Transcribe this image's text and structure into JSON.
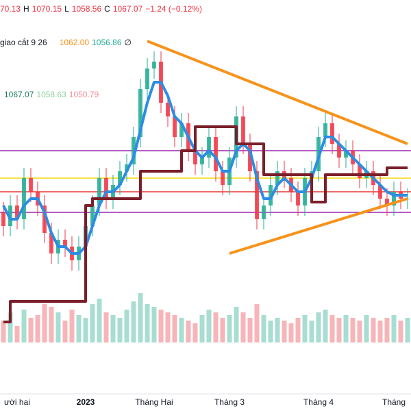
{
  "chart_data": {
    "type": "candlestick",
    "header": {
      "open": "70.13",
      "h_label": "H",
      "high": "1070.15",
      "l_label": "L",
      "low": "1058.56",
      "c_label": "C",
      "close": "1067.07",
      "change": "−1.24 (−0.12%)"
    },
    "indicator": {
      "name": "giao cắt 9 26",
      "v1": "1062.00",
      "v2": "1056.86",
      "symbol": "∅"
    },
    "indicator2": {
      "v1": "1067.07",
      "v2": "1058.63",
      "v3": "1050.79"
    },
    "categories": [
      null,
      null,
      "ười hai",
      null,
      null,
      null,
      null,
      null,
      null,
      null,
      null,
      null,
      "2023",
      null,
      null,
      null,
      null,
      null,
      null,
      null,
      null,
      null,
      "Tháng Hai",
      null,
      null,
      null,
      null,
      null,
      null,
      null,
      null,
      null,
      null,
      "Tháng 3",
      null,
      null,
      null,
      null,
      null,
      null,
      null,
      null,
      null,
      null,
      null,
      null,
      "Tháng 4",
      null,
      null,
      null,
      null,
      null,
      null,
      null,
      null,
      null,
      null,
      "Tháng",
      null,
      null
    ],
    "open": [
      1028,
      1024,
      1030,
      1026,
      1038,
      1034,
      1030,
      1022,
      1016,
      1020,
      1018,
      1014,
      1018,
      1024,
      1030,
      1038,
      1032,
      1036,
      1040,
      1042,
      1050,
      1064,
      1070,
      1072,
      1060,
      1056,
      1050,
      1054,
      1046,
      1042,
      1044,
      1050,
      1040,
      1036,
      1044,
      1056,
      1048,
      1040,
      1026,
      1030,
      1036,
      1040,
      1038,
      1034,
      1030,
      1038,
      1040,
      1050,
      1054,
      1048,
      1044,
      1046,
      1042,
      1038,
      1040,
      1036,
      1032,
      1030,
      1034,
      1032
    ],
    "high": [
      1031,
      1033,
      1033,
      1041,
      1041,
      1037,
      1033,
      1025,
      1023,
      1023,
      1021,
      1021,
      1027,
      1033,
      1041,
      1041,
      1039,
      1043,
      1045,
      1053,
      1067,
      1073,
      1075,
      1075,
      1063,
      1059,
      1057,
      1057,
      1049,
      1047,
      1053,
      1053,
      1043,
      1047,
      1059,
      1059,
      1051,
      1043,
      1033,
      1039,
      1043,
      1043,
      1041,
      1037,
      1041,
      1043,
      1053,
      1057,
      1057,
      1051,
      1049,
      1049,
      1045,
      1043,
      1043,
      1039,
      1035,
      1037,
      1037,
      1035
    ],
    "low": [
      1021,
      1021,
      1023,
      1023,
      1031,
      1027,
      1019,
      1013,
      1013,
      1015,
      1011,
      1011,
      1015,
      1021,
      1027,
      1029,
      1029,
      1033,
      1037,
      1039,
      1047,
      1061,
      1067,
      1057,
      1053,
      1047,
      1047,
      1043,
      1039,
      1039,
      1041,
      1037,
      1033,
      1033,
      1041,
      1045,
      1037,
      1023,
      1023,
      1027,
      1033,
      1035,
      1031,
      1027,
      1027,
      1035,
      1037,
      1047,
      1045,
      1041,
      1041,
      1039,
      1035,
      1035,
      1033,
      1029,
      1027,
      1027,
      1029,
      1029
    ],
    "close": [
      1024,
      1030,
      1026,
      1038,
      1034,
      1030,
      1022,
      1016,
      1020,
      1018,
      1014,
      1018,
      1024,
      1030,
      1038,
      1032,
      1036,
      1040,
      1042,
      1050,
      1064,
      1070,
      1072,
      1060,
      1056,
      1050,
      1054,
      1046,
      1042,
      1044,
      1050,
      1040,
      1036,
      1044,
      1056,
      1048,
      1040,
      1026,
      1030,
      1036,
      1040,
      1038,
      1034,
      1030,
      1038,
      1040,
      1050,
      1054,
      1048,
      1044,
      1046,
      1042,
      1038,
      1040,
      1036,
      1032,
      1030,
      1034,
      1032,
      1032
    ],
    "volume": [
      40,
      55,
      30,
      60,
      45,
      50,
      70,
      65,
      55,
      40,
      60,
      50,
      45,
      70,
      80,
      55,
      50,
      45,
      60,
      75,
      90,
      70,
      65,
      60,
      55,
      50,
      45,
      40,
      35,
      50,
      60,
      55,
      45,
      50,
      65,
      55,
      45,
      70,
      50,
      40,
      45,
      40,
      35,
      45,
      50,
      40,
      55,
      60,
      50,
      45,
      50,
      45,
      40,
      50,
      45,
      40,
      45,
      50,
      40,
      45
    ],
    "up_color": "#22ab94",
    "down_color": "#f23645",
    "volume_up_color": "#a8ddd2",
    "volume_down_color": "#f7b5b9",
    "ylim": [
      990,
      1090
    ],
    "volume_ylim": [
      0,
      100
    ],
    "lines": [
      {
        "color": "#2b8de4",
        "step": false,
        "values": [
          1030,
          1026,
          1026,
          1030,
          1032,
          1032,
          1028,
          1022,
          1018,
          1018,
          1016,
          1016,
          1018,
          1024,
          1030,
          1034,
          1034,
          1036,
          1040,
          1044,
          1052,
          1060,
          1066,
          1066,
          1062,
          1056,
          1054,
          1050,
          1046,
          1044,
          1046,
          1044,
          1040,
          1040,
          1046,
          1048,
          1046,
          1038,
          1032,
          1032,
          1036,
          1038,
          1036,
          1034,
          1034,
          1038,
          1044,
          1050,
          1050,
          1048,
          1046,
          1044,
          1042,
          1040,
          1038,
          1036,
          1034,
          1033,
          1033,
          1033
        ]
      },
      {
        "color": "#7b1f2a",
        "step": true,
        "values": [
          996,
          1002,
          1002,
          1002,
          1002,
          1002,
          1002,
          1002,
          1002,
          1002,
          1002,
          1002,
          1030,
          1032,
          1032,
          1032,
          1032,
          1032,
          1032,
          1032,
          1040,
          1040,
          1040,
          1040,
          1040,
          1040,
          1046,
          1046,
          1053,
          1053,
          1053,
          1053,
          1053,
          1053,
          1048,
          1048,
          1048,
          1048,
          1039,
          1039,
          1039,
          1039,
          1039,
          1039,
          1039,
          1031,
          1031,
          1039,
          1039,
          1039,
          1039,
          1039,
          1039,
          1039,
          1039,
          1039,
          1041,
          1041,
          1041,
          1041
        ]
      }
    ],
    "levels": [
      {
        "value": 1046,
        "color": "#9c27b0"
      },
      {
        "value": 1038,
        "color": "#f5d90a"
      },
      {
        "value": 1034,
        "color": "#e53935"
      },
      {
        "value": 1028,
        "color": "#9c27b0"
      }
    ],
    "trendlines": [
      {
        "color": "#f7931a",
        "points": [
          [
            21,
            1078
          ],
          [
            59,
            1048
          ]
        ]
      },
      {
        "color": "#f7931a",
        "points": [
          [
            33,
            1016
          ],
          [
            59,
            1032
          ]
        ]
      }
    ]
  }
}
